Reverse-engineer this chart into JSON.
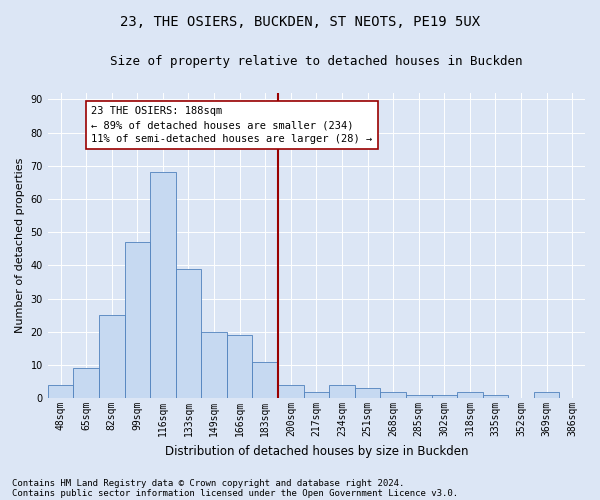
{
  "title": "23, THE OSIERS, BUCKDEN, ST NEOTS, PE19 5UX",
  "subtitle": "Size of property relative to detached houses in Buckden",
  "xlabel": "Distribution of detached houses by size in Buckden",
  "ylabel": "Number of detached properties",
  "categories": [
    "48sqm",
    "65sqm",
    "82sqm",
    "99sqm",
    "116sqm",
    "133sqm",
    "149sqm",
    "166sqm",
    "183sqm",
    "200sqm",
    "217sqm",
    "234sqm",
    "251sqm",
    "268sqm",
    "285sqm",
    "302sqm",
    "318sqm",
    "335sqm",
    "352sqm",
    "369sqm",
    "386sqm"
  ],
  "values": [
    4,
    9,
    25,
    47,
    68,
    39,
    20,
    19,
    11,
    4,
    2,
    4,
    3,
    2,
    1,
    1,
    2,
    1,
    0,
    2,
    0
  ],
  "bar_color": "#c6d9f1",
  "bar_edge_color": "#4f81bd",
  "vline_color": "#990000",
  "annotation_text": "23 THE OSIERS: 188sqm\n← 89% of detached houses are smaller (234)\n11% of semi-detached houses are larger (28) →",
  "annotation_box_color": "#ffffff",
  "annotation_box_edge": "#990000",
  "ylim": [
    0,
    92
  ],
  "yticks": [
    0,
    10,
    20,
    30,
    40,
    50,
    60,
    70,
    80,
    90
  ],
  "footer1": "Contains HM Land Registry data © Crown copyright and database right 2024.",
  "footer2": "Contains public sector information licensed under the Open Government Licence v3.0.",
  "bg_color": "#dce6f5",
  "plot_bg_color": "#dce6f5",
  "title_fontsize": 10,
  "subtitle_fontsize": 9,
  "xlabel_fontsize": 8.5,
  "ylabel_fontsize": 8,
  "tick_fontsize": 7,
  "annotation_fontsize": 7.5,
  "footer_fontsize": 6.5
}
